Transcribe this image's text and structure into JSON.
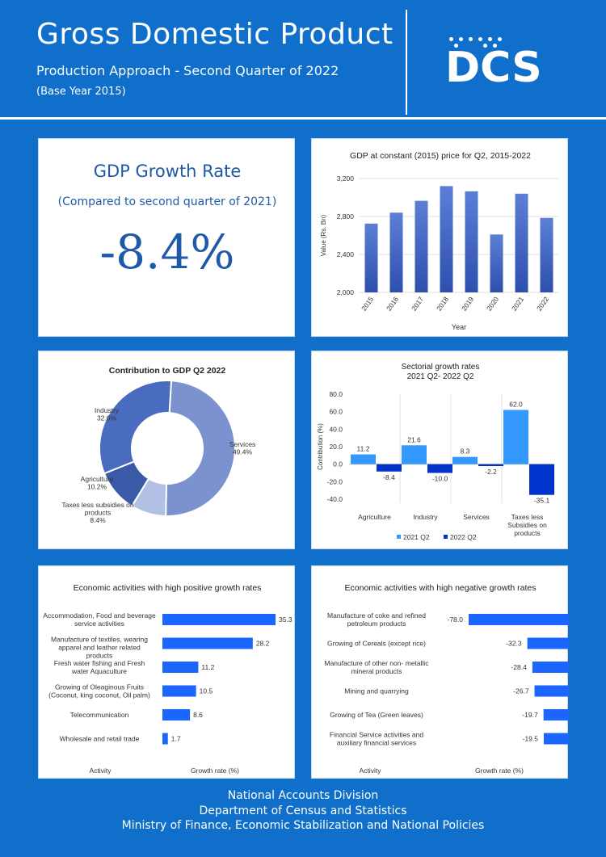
{
  "header": {
    "title": "Gross Domestic Product",
    "subtitle": "Production Approach - Second Quarter of 2022",
    "base_year": "(Base Year 2015)",
    "logo_text": "DCS"
  },
  "growth_rate": {
    "title": "GDP Growth Rate",
    "subtitle": "(Compared to second quarter of 2021)",
    "value": "-8.4%"
  },
  "footer": {
    "line1": "National Accounts Division",
    "line2": "Department of Census and Statistics",
    "line3": "Ministry of Finance, Economic Stabilization and National Policies"
  },
  "colors": {
    "background": "#0f6fcb",
    "bar_gradient_top": "#5b7fd6",
    "bar_gradient_bottom": "#2e4fae",
    "series_2021": "#3399ff",
    "series_2022": "#0033cc",
    "hbar": "#1a66ff",
    "title_blue": "#1e5aa8"
  },
  "chart_data": [
    {
      "id": "gdp_constant",
      "type": "bar",
      "title": "GDP at constant (2015) price for Q2, 2015-2022",
      "xlabel": "Year",
      "ylabel": "Value (Rs. Bn)",
      "categories": [
        "2015",
        "2016",
        "2017",
        "2018",
        "2019",
        "2020",
        "2021",
        "2022"
      ],
      "values": [
        2725,
        2840,
        2965,
        3120,
        3065,
        2610,
        3040,
        2785
      ],
      "ylim": [
        2000,
        3200
      ],
      "ticks": [
        2000,
        2400,
        2800,
        3200
      ],
      "tick_labels": [
        "2,000",
        "2,400",
        "2,800",
        "3,200"
      ],
      "grid": true
    },
    {
      "id": "contribution",
      "type": "pie",
      "title": "Contribution to GDP Q2 2022",
      "slices": [
        {
          "label": "Services",
          "value": 49.4,
          "display": "49.4%",
          "color": "#7b92cf"
        },
        {
          "label": "Taxes less subsidies on products",
          "value": 8.4,
          "display": "8.4%",
          "color": "#b3c0e6"
        },
        {
          "label": "Agriculture",
          "value": 10.2,
          "display": "10.2%",
          "color": "#3a5aa8"
        },
        {
          "label": "Industry",
          "value": 32.0,
          "display": "32.0%",
          "color": "#4a6cc0"
        }
      ]
    },
    {
      "id": "sectorial",
      "type": "bar",
      "title": "Sectorial growth rates",
      "subtitle": "2021 Q2- 2022 Q2",
      "ylabel": "Contribution (%)",
      "categories": [
        "Agriculture",
        "Industry",
        "Services",
        "Taxes less Subsidies on products"
      ],
      "ylim": [
        -40,
        80
      ],
      "ticks": [
        -40,
        -20,
        0,
        20,
        40,
        60,
        80
      ],
      "tick_labels": [
        "-40.0",
        "-20.0",
        "0.0",
        "20.0",
        "40.0",
        "60.0",
        "80.0"
      ],
      "series": [
        {
          "name": "2021 Q2",
          "values": [
            11.2,
            21.6,
            8.3,
            62.0
          ],
          "labels": [
            "11.2",
            "21.6",
            "8.3",
            "62.0"
          ],
          "color": "#3399ff"
        },
        {
          "name": "2022 Q2",
          "values": [
            -8.4,
            -10.0,
            -2.2,
            -35.1
          ],
          "labels": [
            "-8.4",
            "-10.0",
            "-2.2",
            "-35.1"
          ],
          "color": "#0033cc"
        }
      ]
    },
    {
      "id": "positive",
      "type": "bar",
      "orientation": "horizontal",
      "title": "Economic activities with high positive growth rates",
      "xlabel": "Growth rate (%)",
      "category_axis_label": "Activity",
      "categories": [
        "Accommodation, Food and beverage service activities",
        "Manufacture of textiles, wearing apparel and leather related products",
        "Fresh water fishing and Fresh water Aquaculture",
        "Growing of Oleaginous Fruits (Coconut, king coconut, Oil palm)",
        "Telecommunication",
        "Wholesale and retail trade"
      ],
      "values": [
        35.3,
        28.2,
        11.2,
        10.5,
        8.6,
        1.7
      ],
      "labels": [
        "35.3",
        "28.2",
        "11.2",
        "10.5",
        "8.6",
        "1.7"
      ]
    },
    {
      "id": "negative",
      "type": "bar",
      "orientation": "horizontal",
      "title": "Economic activities with high negative growth rates",
      "xlabel": "Growth rate (%)",
      "category_axis_label": "Activity",
      "categories": [
        "Manufacture of coke and refined petroleum products",
        "Growing of Cereals (except rice)",
        "Manufacture of other non- metallic mineral products",
        "Mining and quarrying",
        "Growing of Tea (Green leaves)",
        "Financial Service activities and auxiliary financial services"
      ],
      "values": [
        -78.0,
        -32.3,
        -28.4,
        -26.7,
        -19.7,
        -19.5
      ],
      "labels": [
        "-78.0",
        "-32.3",
        "-28.4",
        "-26.7",
        "-19.7",
        "-19.5"
      ]
    }
  ]
}
